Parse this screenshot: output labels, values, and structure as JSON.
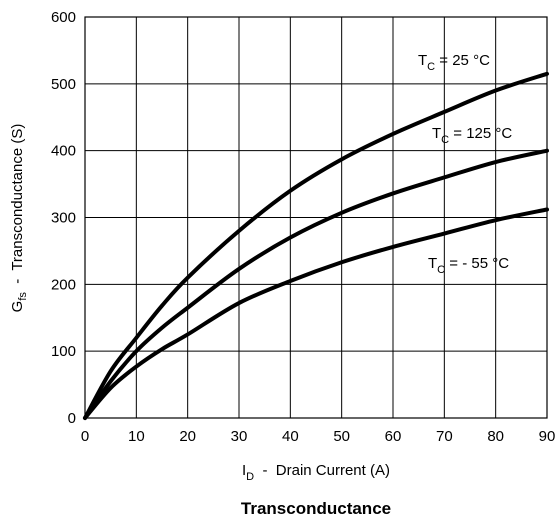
{
  "chart_data": {
    "type": "line",
    "title": "Transconductance",
    "xlabel": {
      "main": "I",
      "sub": "D",
      "rest": "  -  Drain Current (A)"
    },
    "ylabel": {
      "main": "G",
      "sub": "fs",
      "rest": "  -  Transconductance (S)"
    },
    "xlim": [
      0,
      90
    ],
    "ylim": [
      0,
      600
    ],
    "xticks": [
      "0",
      "10",
      "20",
      "30",
      "40",
      "50",
      "60",
      "70",
      "80",
      "90"
    ],
    "yticks": [
      "0",
      "100",
      "200",
      "300",
      "400",
      "500",
      "600"
    ],
    "grid": true,
    "series": [
      {
        "name": {
          "main": "T",
          "sub": "C",
          "rest": " = 25 °C"
        },
        "x": [
          0,
          5,
          10,
          15,
          20,
          30,
          40,
          50,
          60,
          70,
          80,
          90
        ],
        "y": [
          0,
          70,
          120,
          168,
          210,
          280,
          340,
          387,
          425,
          458,
          490,
          515
        ]
      },
      {
        "name": {
          "main": "T",
          "sub": "C",
          "rest": " = 125 °C"
        },
        "x": [
          0,
          5,
          10,
          15,
          20,
          30,
          40,
          50,
          60,
          70,
          80,
          90
        ],
        "y": [
          0,
          55,
          100,
          135,
          165,
          223,
          270,
          307,
          336,
          360,
          383,
          400
        ]
      },
      {
        "name": {
          "main": "T",
          "sub": "C",
          "rest": " = - 55 °C"
        },
        "x": [
          0,
          5,
          10,
          15,
          20,
          30,
          40,
          50,
          60,
          70,
          80,
          90
        ],
        "y": [
          0,
          45,
          77,
          103,
          125,
          172,
          205,
          233,
          256,
          276,
          296,
          312
        ]
      }
    ]
  }
}
